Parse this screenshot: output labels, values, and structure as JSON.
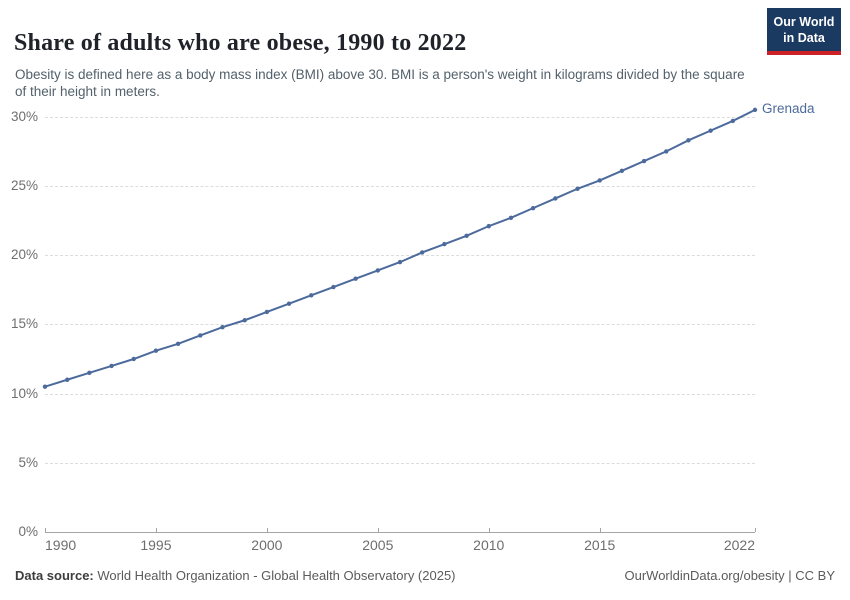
{
  "header": {
    "title": "Share of adults who are obese, 1990 to 2022",
    "subtitle": "Obesity is defined here as a body mass index (BMI) above 30. BMI is a person's weight in kilograms divided by the square of their height in meters.",
    "logo_line1": "Our World",
    "logo_line2": "in Data"
  },
  "colors": {
    "line": "#4c6a9c",
    "logo_navy": "#1a3a62",
    "logo_red": "#cc2127",
    "gridline": "#dcdcdc",
    "axis": "#a5a5a5",
    "tick_text": "#6e6e6e"
  },
  "chart_data": {
    "type": "line",
    "title": "Share of adults who are obese, 1990 to 2022",
    "xlabel": "",
    "ylabel": "",
    "xlim": [
      1990,
      2022
    ],
    "ylim": [
      0,
      31
    ],
    "grid": "horizontal-dashed",
    "legend_position": "end-of-line-label",
    "x_ticks": [
      1990,
      1995,
      2000,
      2005,
      2010,
      2015,
      2022
    ],
    "x_tick_labels": [
      "1990",
      "1995",
      "2000",
      "2005",
      "2010",
      "2015",
      "2022"
    ],
    "y_ticks": [
      0,
      5,
      10,
      15,
      20,
      25,
      30
    ],
    "y_tick_labels": [
      "0%",
      "5%",
      "10%",
      "15%",
      "20%",
      "25%",
      "30%"
    ],
    "series": [
      {
        "name": "Grenada",
        "color": "#4c6a9c",
        "x": [
          1990,
          1991,
          1992,
          1993,
          1994,
          1995,
          1996,
          1997,
          1998,
          1999,
          2000,
          2001,
          2002,
          2003,
          2004,
          2005,
          2006,
          2007,
          2008,
          2009,
          2010,
          2011,
          2012,
          2013,
          2014,
          2015,
          2016,
          2017,
          2018,
          2019,
          2020,
          2021,
          2022
        ],
        "values": [
          10.5,
          11.0,
          11.5,
          12.0,
          12.5,
          13.1,
          13.6,
          14.2,
          14.8,
          15.3,
          15.9,
          16.5,
          17.1,
          17.7,
          18.3,
          18.9,
          19.5,
          20.2,
          20.8,
          21.4,
          22.1,
          22.7,
          23.4,
          24.1,
          24.8,
          25.4,
          26.1,
          26.8,
          27.5,
          28.3,
          29.0,
          29.7,
          30.5
        ]
      }
    ]
  },
  "footer": {
    "datasource_label": "Data source:",
    "datasource_text": " World Health Organization - Global Health Observatory (2025)",
    "credit": "OurWorldinData.org/obesity | CC BY"
  }
}
